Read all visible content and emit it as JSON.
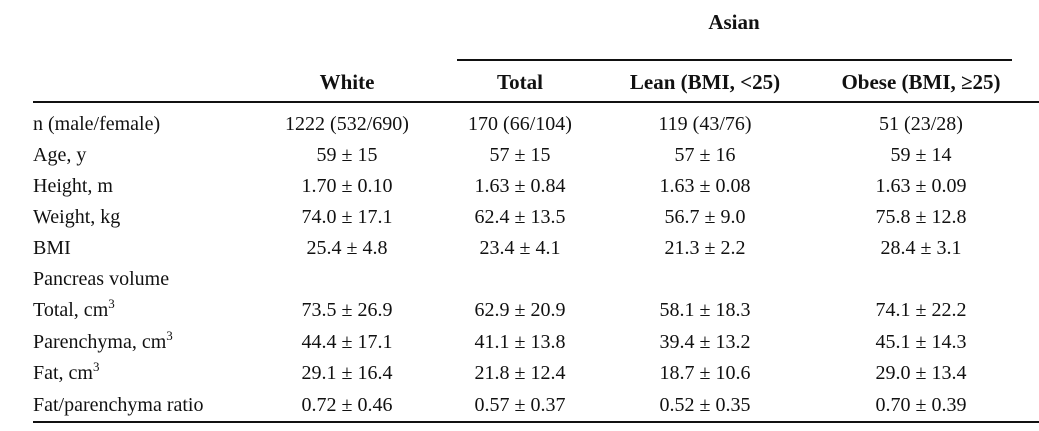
{
  "table": {
    "group_header": "Asian",
    "columns": {
      "white": "White",
      "total": "Total",
      "lean": "Lean (BMI, <25)",
      "obese": "Obese (BMI, ≥25)"
    },
    "rows": [
      {
        "label": "n (male/female)",
        "sup": "",
        "white": "1222 (532/690)",
        "total": "170 (66/104)",
        "lean": "119 (43/76)",
        "obese": "51 (23/28)"
      },
      {
        "label": "Age, y",
        "sup": "",
        "white": "59 ± 15",
        "total": "57 ± 15",
        "lean": "57 ± 16",
        "obese": "59 ± 14"
      },
      {
        "label": "Height, m",
        "sup": "",
        "white": "1.70 ± 0.10",
        "total": "1.63 ± 0.84",
        "lean": "1.63 ± 0.08",
        "obese": "1.63 ± 0.09"
      },
      {
        "label": "Weight, kg",
        "sup": "",
        "white": "74.0 ± 17.1",
        "total": "62.4 ± 13.5",
        "lean": "56.7 ± 9.0",
        "obese": "75.8 ± 12.8"
      },
      {
        "label": "BMI",
        "sup": "",
        "white": "25.4 ± 4.8",
        "total": "23.4 ± 4.1",
        "lean": "21.3 ± 2.2",
        "obese": "28.4 ± 3.1"
      },
      {
        "label": "Pancreas volume",
        "sup": "",
        "white": "",
        "total": "",
        "lean": "",
        "obese": ""
      },
      {
        "label": "Total, cm",
        "sup": "3",
        "white": "73.5 ± 26.9",
        "total": "62.9 ± 20.9",
        "lean": "58.1 ± 18.3",
        "obese": "74.1 ± 22.2"
      },
      {
        "label": "Parenchyma, cm",
        "sup": "3",
        "white": "44.4 ± 17.1",
        "total": "41.1 ± 13.8",
        "lean": "39.4 ± 13.2",
        "obese": "45.1 ± 14.3"
      },
      {
        "label": "Fat, cm",
        "sup": "3",
        "white": "29.1 ± 16.4",
        "total": "21.8 ± 12.4",
        "lean": "18.7 ± 10.6",
        "obese": "29.0 ± 13.4"
      },
      {
        "label": "Fat/parenchyma ratio",
        "sup": "",
        "white": "0.72 ± 0.46",
        "total": "0.57 ± 0.37",
        "lean": "0.52 ± 0.35",
        "obese": "0.70 ± 0.39"
      }
    ]
  }
}
